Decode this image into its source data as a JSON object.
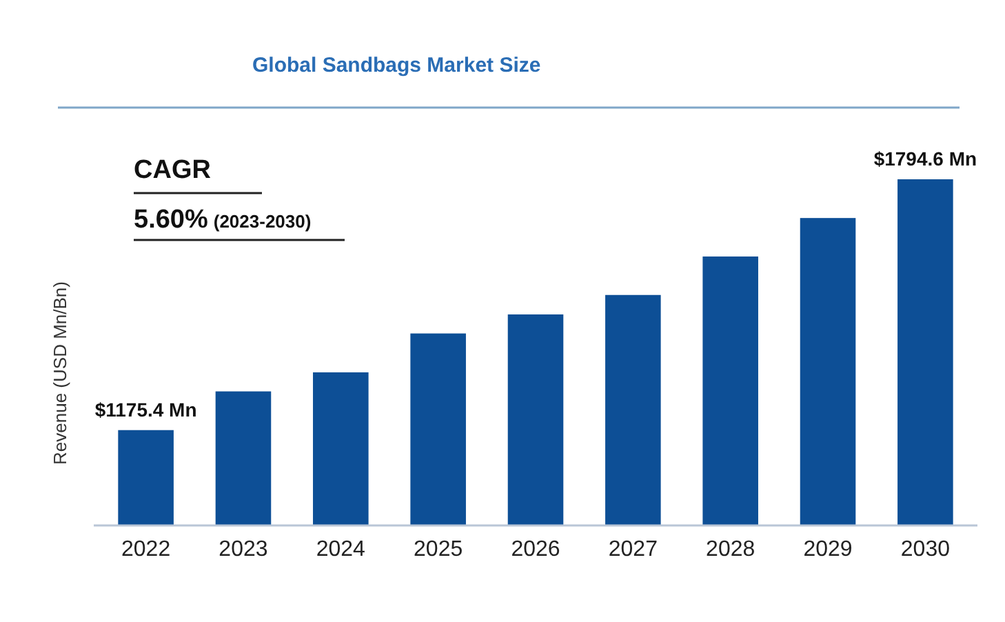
{
  "chart_data": {
    "type": "bar",
    "title": "Global Sandbags Market Size",
    "ylabel": "Revenue (USD Mn/Bn)",
    "categories": [
      "2022",
      "2023",
      "2024",
      "2025",
      "2026",
      "2027",
      "2028",
      "2029",
      "2030"
    ],
    "values": [
      1175.4,
      1271,
      1318,
      1414,
      1461,
      1509,
      1604,
      1699,
      1794.6
    ],
    "value_labels": [
      "$1175.4 Mn",
      null,
      null,
      null,
      null,
      null,
      null,
      null,
      "$1794.6 Mn"
    ],
    "color": "#0d4f96",
    "ylim": [
      940,
      1794.6
    ],
    "tick_labels": "x",
    "annotations": [
      "CAGR",
      "5.60%",
      "(2023-2030)"
    ]
  }
}
